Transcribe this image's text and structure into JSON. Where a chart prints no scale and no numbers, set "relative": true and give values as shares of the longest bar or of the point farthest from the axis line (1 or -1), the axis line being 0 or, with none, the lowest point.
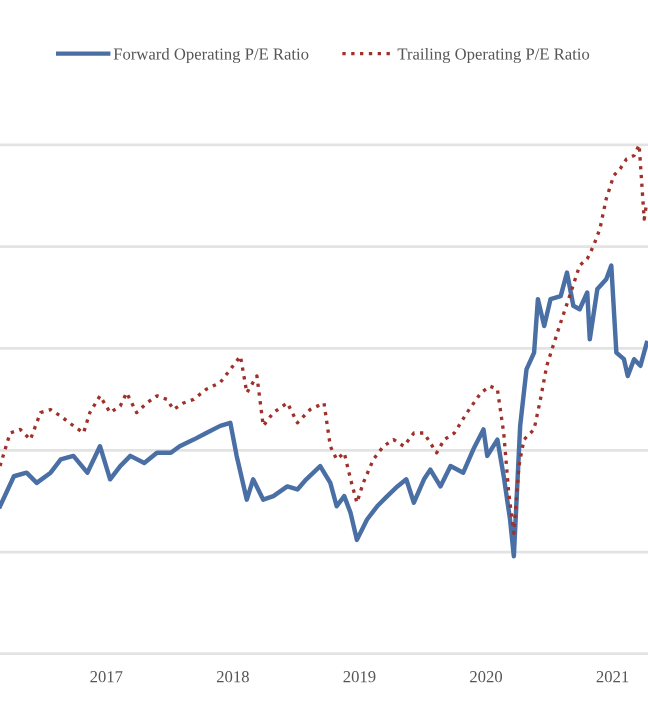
{
  "chart_data": {
    "type": "line",
    "relative": true,
    "grid": "y",
    "legend": "top",
    "xlim": [
      2016.16,
      2021.28
    ],
    "xticks": [
      2017,
      2018,
      2019,
      2020,
      2021
    ],
    "tick_labels": "x",
    "series": [
      {
        "name": "Forward Operating P/E Ratio",
        "color": "#4a6fa5",
        "line_style": "solid",
        "x": [
          2016.16,
          2016.27,
          2016.37,
          2016.45,
          2016.56,
          2016.64,
          2016.74,
          2016.85,
          2016.95,
          2017.03,
          2017.11,
          2017.19,
          2017.3,
          2017.4,
          2017.51,
          2017.58,
          2017.69,
          2017.79,
          2017.9,
          2017.98,
          2018.03,
          2018.11,
          2018.16,
          2018.24,
          2018.32,
          2018.43,
          2018.51,
          2018.58,
          2018.69,
          2018.77,
          2018.82,
          2018.88,
          2018.93,
          2018.98,
          2019.06,
          2019.14,
          2019.22,
          2019.3,
          2019.37,
          2019.43,
          2019.51,
          2019.56,
          2019.64,
          2019.72,
          2019.82,
          2019.9,
          2019.98,
          2020.01,
          2020.09,
          2020.14,
          2020.19,
          2020.22,
          2020.27,
          2020.32,
          2020.38,
          2020.41,
          2020.46,
          2020.51,
          2020.59,
          2020.64,
          2020.69,
          2020.74,
          2020.8,
          2020.82,
          2020.88,
          2020.95,
          2020.99,
          2021.03,
          2021.09,
          2021.12,
          2021.17,
          2021.22,
          2021.27
        ],
        "values": [
          0.29,
          0.349,
          0.356,
          0.336,
          0.356,
          0.382,
          0.389,
          0.356,
          0.408,
          0.343,
          0.369,
          0.389,
          0.375,
          0.395,
          0.395,
          0.408,
          0.421,
          0.434,
          0.448,
          0.454,
          0.389,
          0.303,
          0.343,
          0.303,
          0.31,
          0.329,
          0.323,
          0.343,
          0.369,
          0.336,
          0.29,
          0.31,
          0.277,
          0.224,
          0.264,
          0.29,
          0.31,
          0.329,
          0.343,
          0.297,
          0.343,
          0.362,
          0.329,
          0.369,
          0.356,
          0.402,
          0.441,
          0.389,
          0.421,
          0.349,
          0.264,
          0.192,
          0.448,
          0.559,
          0.592,
          0.697,
          0.644,
          0.697,
          0.703,
          0.749,
          0.684,
          0.677,
          0.71,
          0.618,
          0.717,
          0.736,
          0.763,
          0.592,
          0.579,
          0.546,
          0.579,
          0.566,
          0.611
        ]
      },
      {
        "name": "Trailing Operating P/E Ratio",
        "color": "#a0302a",
        "line_style": "dotted",
        "x": [
          2016.16,
          2016.24,
          2016.32,
          2016.4,
          2016.48,
          2016.56,
          2016.64,
          2016.74,
          2016.82,
          2016.87,
          2016.95,
          2017.03,
          2017.11,
          2017.16,
          2017.24,
          2017.32,
          2017.4,
          2017.48,
          2017.53,
          2017.61,
          2017.69,
          2017.79,
          2017.9,
          2017.98,
          2018.06,
          2018.11,
          2018.19,
          2018.24,
          2018.32,
          2018.43,
          2018.51,
          2018.61,
          2018.72,
          2018.77,
          2018.82,
          2018.88,
          2018.93,
          2018.98,
          2019.03,
          2019.11,
          2019.19,
          2019.27,
          2019.35,
          2019.43,
          2019.51,
          2019.61,
          2019.67,
          2019.75,
          2019.85,
          2019.96,
          2020.03,
          2020.09,
          2020.14,
          2020.18,
          2020.22,
          2020.26,
          2020.3,
          2020.38,
          2020.43,
          2020.48,
          2020.53,
          2020.59,
          2020.67,
          2020.74,
          2020.8,
          2020.85,
          2020.9,
          2020.95,
          2021.01,
          2021.06,
          2021.11,
          2021.17,
          2021.21,
          2021.25,
          2021.27
        ],
        "values": [
          0.369,
          0.434,
          0.441,
          0.421,
          0.474,
          0.48,
          0.467,
          0.448,
          0.434,
          0.474,
          0.507,
          0.474,
          0.487,
          0.513,
          0.474,
          0.493,
          0.507,
          0.5,
          0.48,
          0.493,
          0.5,
          0.52,
          0.533,
          0.559,
          0.585,
          0.513,
          0.546,
          0.448,
          0.474,
          0.493,
          0.454,
          0.48,
          0.493,
          0.408,
          0.382,
          0.395,
          0.343,
          0.297,
          0.336,
          0.382,
          0.408,
          0.421,
          0.408,
          0.434,
          0.434,
          0.395,
          0.421,
          0.434,
          0.474,
          0.513,
          0.526,
          0.52,
          0.434,
          0.316,
          0.237,
          0.369,
          0.421,
          0.441,
          0.5,
          0.566,
          0.605,
          0.651,
          0.71,
          0.763,
          0.776,
          0.802,
          0.835,
          0.894,
          0.94,
          0.953,
          0.972,
          0.979,
          1,
          0.854,
          0.887
        ]
      }
    ]
  }
}
